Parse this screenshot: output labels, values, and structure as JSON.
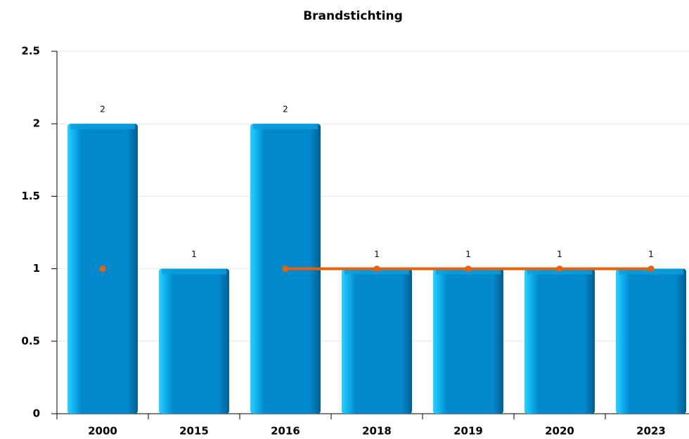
{
  "chart_data": {
    "type": "bar",
    "title": "Brandstichting",
    "categories": [
      "2000",
      "2015",
      "2016",
      "2018",
      "2019",
      "2020",
      "2023"
    ],
    "series": [
      {
        "type": "bar",
        "color": "#0288cc",
        "values": [
          2,
          1,
          2,
          1,
          1,
          1,
          1
        ]
      },
      {
        "type": "line",
        "color": "#e8600a",
        "values": [
          1,
          null,
          1,
          1,
          1,
          1,
          1
        ]
      }
    ],
    "ylim": [
      0,
      2.5
    ],
    "yticks": [
      0,
      0.5,
      1,
      1.5,
      2,
      2.5
    ],
    "grid": true
  }
}
